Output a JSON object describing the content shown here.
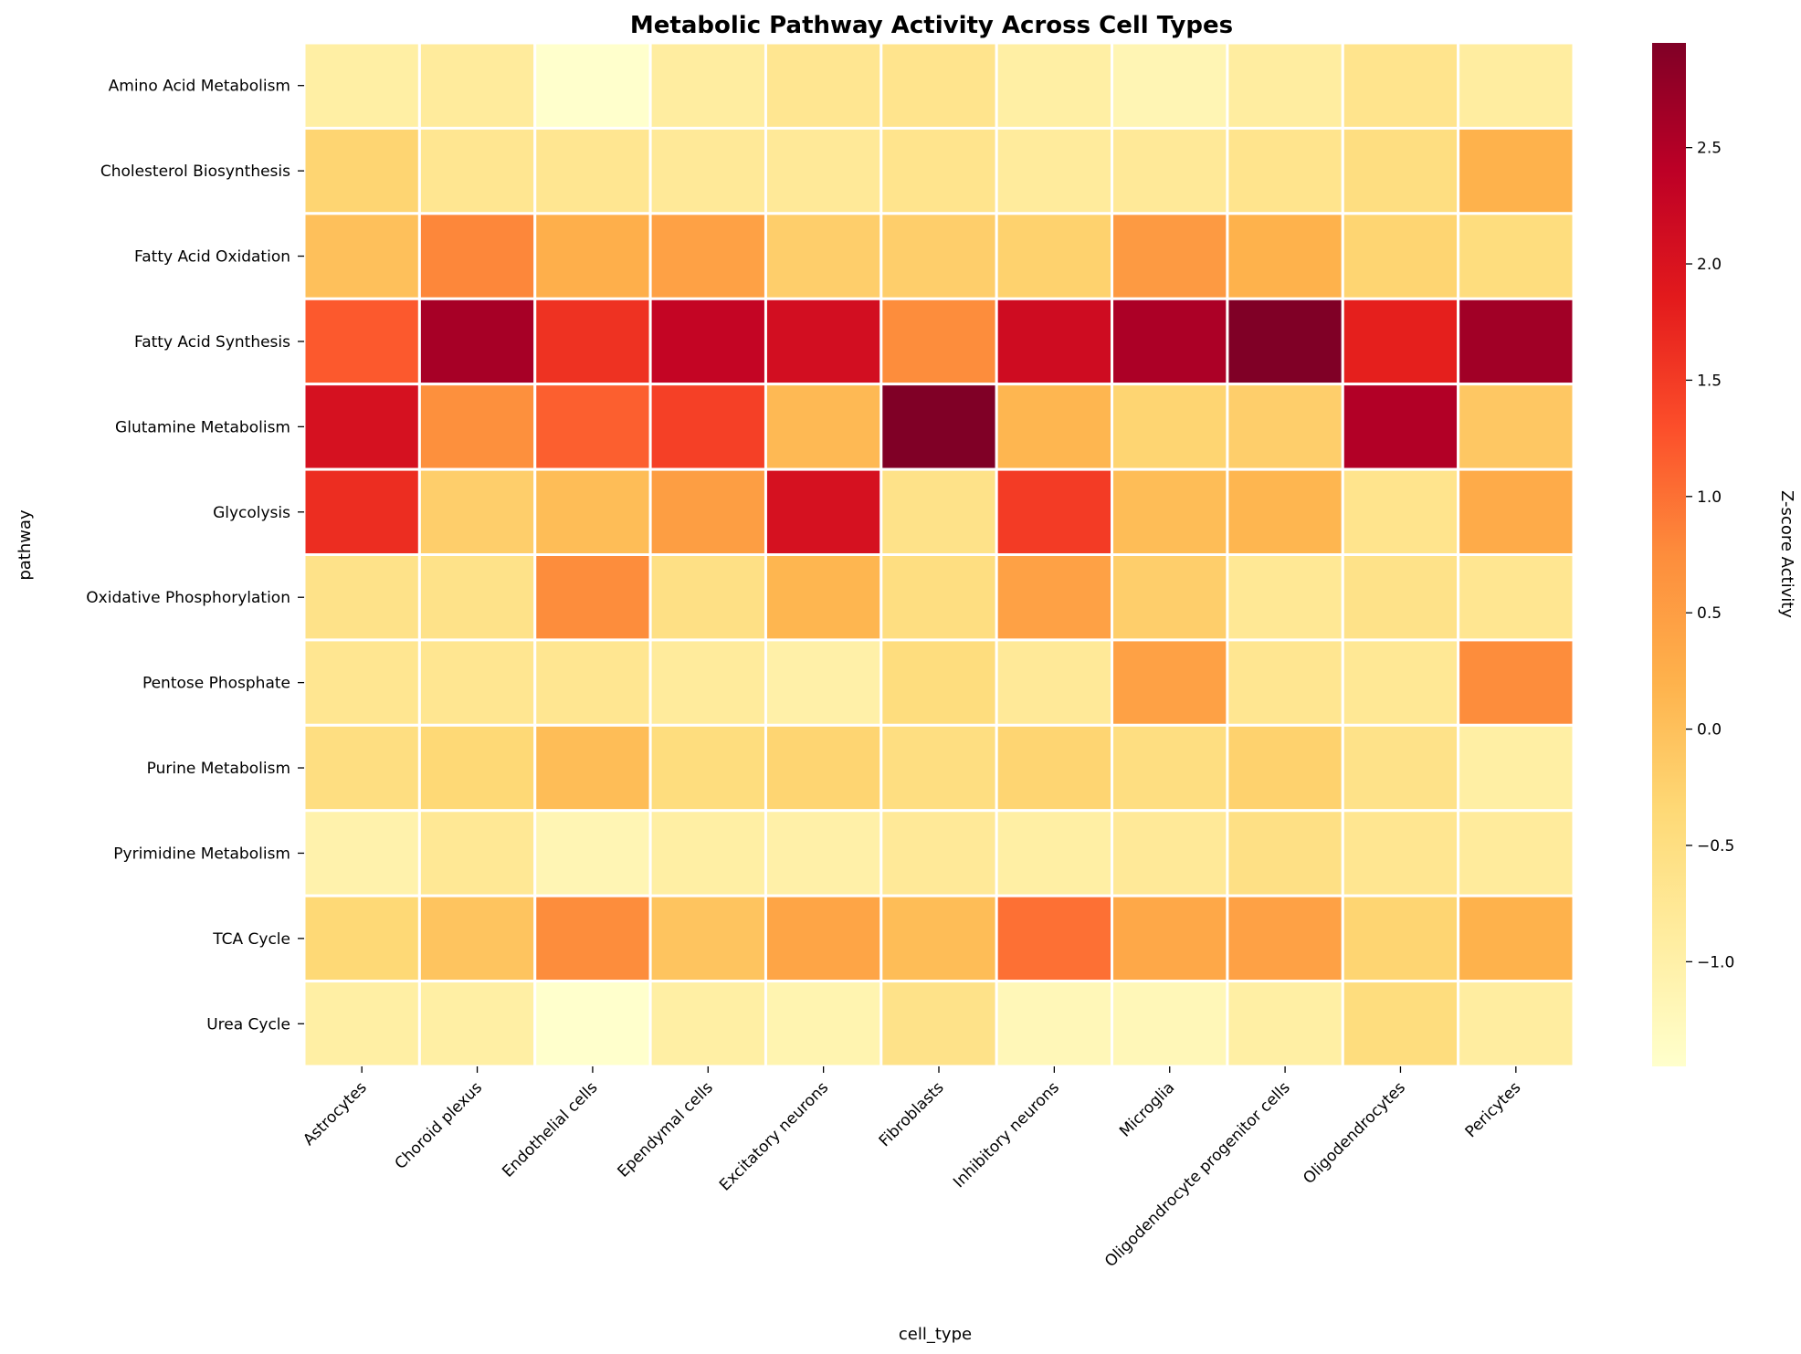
{
  "chart_data": {
    "type": "heatmap",
    "title": "Metabolic Pathway Activity Across Cell Types",
    "xlabel": "cell_type",
    "ylabel": "pathway",
    "x_categories": [
      "Astrocytes",
      "Choroid plexus",
      "Endothelial cells",
      "Ependymal cells",
      "Excitatory neurons",
      "Fibroblasts",
      "Inhibitory neurons",
      "Microglia",
      "Oligodendrocyte progenitor cells",
      "Oligodendrocytes",
      "Pericytes"
    ],
    "y_categories": [
      "Amino Acid Metabolism",
      "Cholesterol Biosynthesis",
      "Fatty Acid Oxidation",
      "Fatty Acid Synthesis",
      "Glutamine Metabolism",
      "Glycolysis",
      "Oxidative Phosphorylation",
      "Pentose Phosphate",
      "Purine Metabolism",
      "Pyrimidine Metabolism",
      "TCA Cycle",
      "Urea Cycle"
    ],
    "values": [
      [
        -0.95,
        -0.85,
        -1.45,
        -0.9,
        -0.7,
        -0.65,
        -0.95,
        -1.15,
        -0.9,
        -0.65,
        -0.9
      ],
      [
        -0.3,
        -0.7,
        -0.7,
        -0.8,
        -0.8,
        -0.65,
        -0.85,
        -0.8,
        -0.65,
        -0.5,
        0.2
      ],
      [
        0.0,
        0.8,
        0.25,
        0.45,
        -0.2,
        -0.2,
        -0.25,
        0.55,
        0.2,
        -0.3,
        -0.45
      ],
      [
        1.2,
        2.6,
        1.6,
        2.3,
        2.1,
        0.75,
        2.15,
        2.55,
        2.95,
        1.8,
        2.65
      ],
      [
        2.05,
        0.7,
        1.15,
        1.45,
        0.1,
        2.95,
        0.15,
        -0.3,
        -0.2,
        2.5,
        -0.1
      ],
      [
        1.65,
        -0.2,
        0.05,
        0.5,
        2.05,
        -0.6,
        1.5,
        0.05,
        0.15,
        -0.65,
        0.3
      ],
      [
        -0.6,
        -0.6,
        0.75,
        -0.55,
        0.15,
        -0.5,
        0.45,
        -0.2,
        -0.75,
        -0.6,
        -0.7
      ],
      [
        -0.7,
        -0.7,
        -0.7,
        -0.85,
        -1.0,
        -0.45,
        -0.8,
        0.45,
        -0.7,
        -0.75,
        0.75
      ],
      [
        -0.5,
        -0.35,
        0.05,
        -0.45,
        -0.3,
        -0.5,
        -0.3,
        -0.5,
        -0.25,
        -0.6,
        -0.95
      ],
      [
        -1.05,
        -0.75,
        -1.15,
        -0.95,
        -1.0,
        -0.8,
        -0.95,
        -0.8,
        -0.55,
        -0.7,
        -0.85
      ],
      [
        -0.35,
        -0.05,
        0.75,
        -0.05,
        0.4,
        0.05,
        1.0,
        0.35,
        0.45,
        -0.3,
        0.2
      ],
      [
        -0.95,
        -0.95,
        -1.45,
        -0.95,
        -1.1,
        -0.6,
        -1.2,
        -1.2,
        -0.95,
        -0.45,
        -0.9
      ]
    ],
    "colorbar": {
      "label": "Z-score Activity",
      "min": -1.45,
      "max": 2.95,
      "ticks": [
        -1.0,
        -0.5,
        0.0,
        0.5,
        1.0,
        1.5,
        2.0,
        2.5
      ],
      "tick_labels": [
        "−1.0",
        "−0.5",
        "0.0",
        "0.5",
        "1.0",
        "1.5",
        "2.0",
        "2.5"
      ],
      "colormap": "YlOrRd",
      "stops": [
        "#ffffcc",
        "#ffeda0",
        "#fed976",
        "#feb24c",
        "#fd8d3c",
        "#fc4e2a",
        "#e31a1c",
        "#bd0026",
        "#800026"
      ]
    },
    "grid": false,
    "cell_border_color": "#ffffff"
  }
}
